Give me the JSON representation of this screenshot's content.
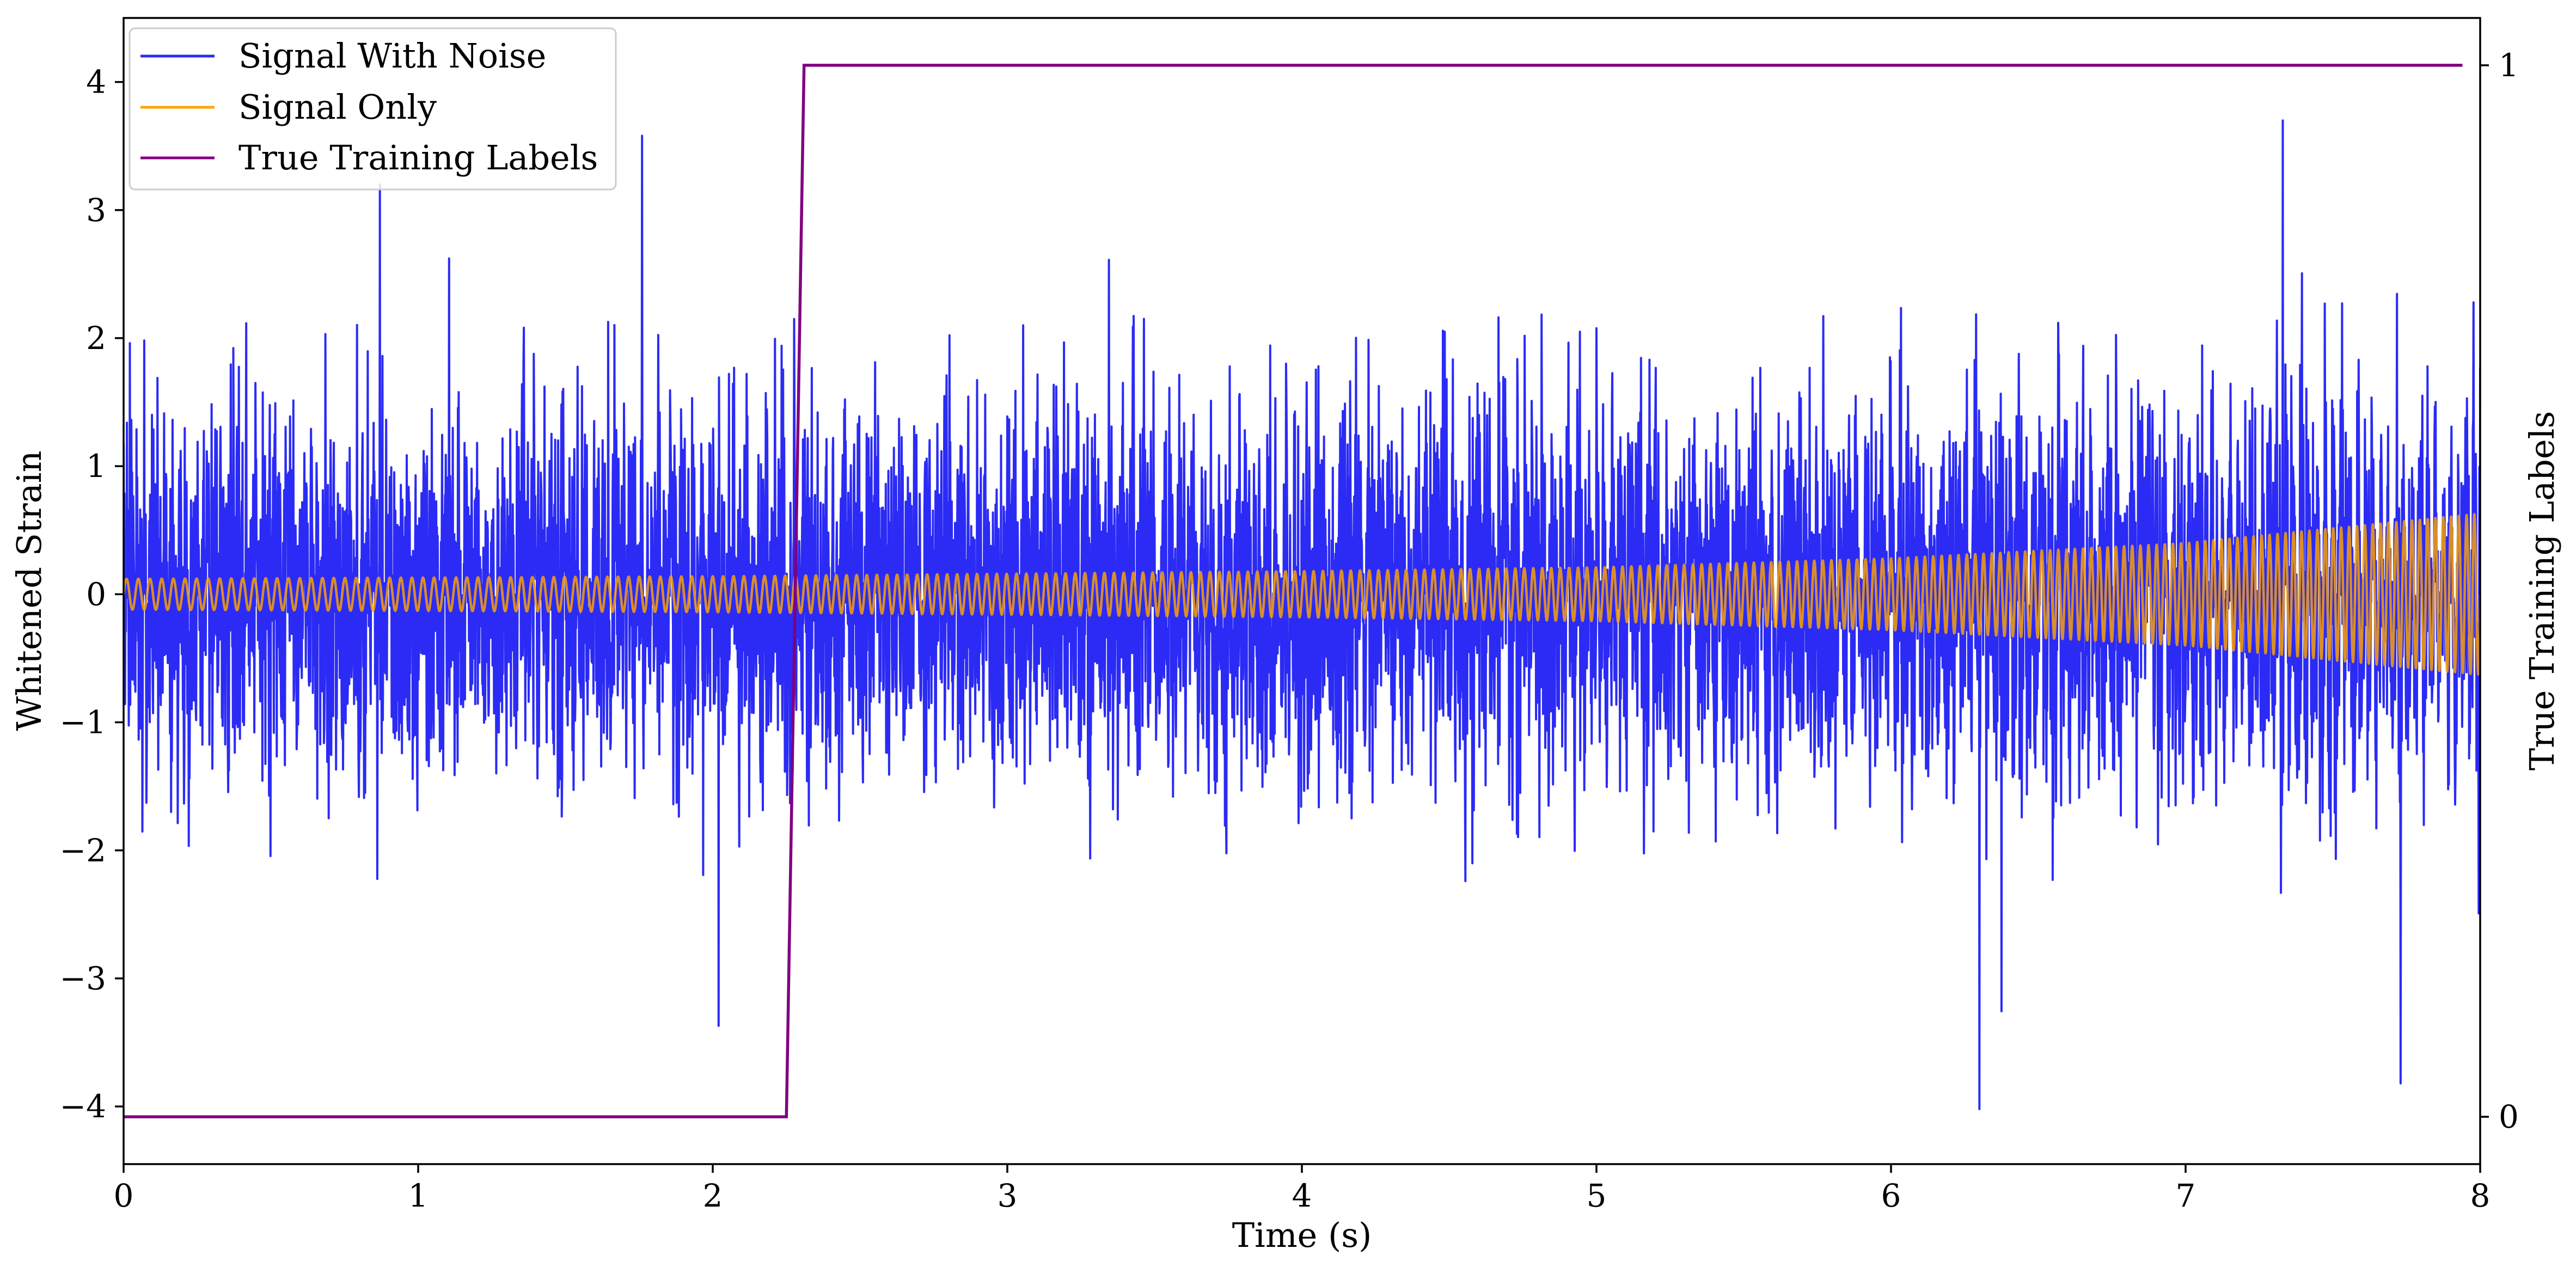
{
  "chart_data": {
    "type": "line",
    "title": "",
    "xlabel": "Time (s)",
    "ylabel": "Whitened Strain",
    "y2label": "True Training Labels",
    "xlim": [
      0,
      8
    ],
    "ylim": [
      -4.45,
      4.5
    ],
    "y2lim": [
      -0.045,
      1.045
    ],
    "x_ticks": [
      0,
      1,
      2,
      3,
      4,
      5,
      6,
      7,
      8
    ],
    "x_tick_labels": [
      "0",
      "1",
      "2",
      "3",
      "4",
      "5",
      "6",
      "7",
      "8"
    ],
    "y_ticks": [
      -4,
      -3,
      -2,
      -1,
      0,
      1,
      2,
      3,
      4
    ],
    "y_tick_labels": [
      "−4",
      "−3",
      "−2",
      "−1",
      "0",
      "1",
      "2",
      "3",
      "4"
    ],
    "y2_ticks": [
      0,
      1
    ],
    "y2_tick_labels": [
      "0",
      "1"
    ],
    "grid": false,
    "legend_position": "top-left",
    "series": [
      {
        "name": "Signal With Noise",
        "axis": "left",
        "color": "#2b2bf5",
        "noise_envelope": {
          "typical_abs": 1.0,
          "peak_abs": 4.05
        },
        "notable_extremes": [
          {
            "x": 0.87,
            "y": 3.2
          },
          {
            "x": 1.76,
            "y": 3.58
          },
          {
            "x": 2.02,
            "y": -3.37
          },
          {
            "x": 6.3,
            "y": -4.02
          },
          {
            "x": 7.33,
            "y": 3.7
          },
          {
            "x": 7.73,
            "y": -3.82
          }
        ]
      },
      {
        "name": "Signal Only",
        "axis": "left",
        "color": "#ffa500",
        "waveform": "chirp",
        "frequency_hz": {
          "start": 25,
          "end": 38
        },
        "amplitude": {
          "x": [
            0,
            1,
            2,
            3,
            4,
            5,
            6,
            7,
            8
          ],
          "y": [
            0.12,
            0.13,
            0.14,
            0.16,
            0.18,
            0.21,
            0.28,
            0.4,
            0.63
          ]
        }
      },
      {
        "name": "True Training Labels",
        "axis": "right",
        "color": "#800080",
        "x": [
          0,
          2.25,
          2.31,
          7.94
        ],
        "y": [
          0,
          0,
          1,
          1
        ]
      }
    ]
  }
}
